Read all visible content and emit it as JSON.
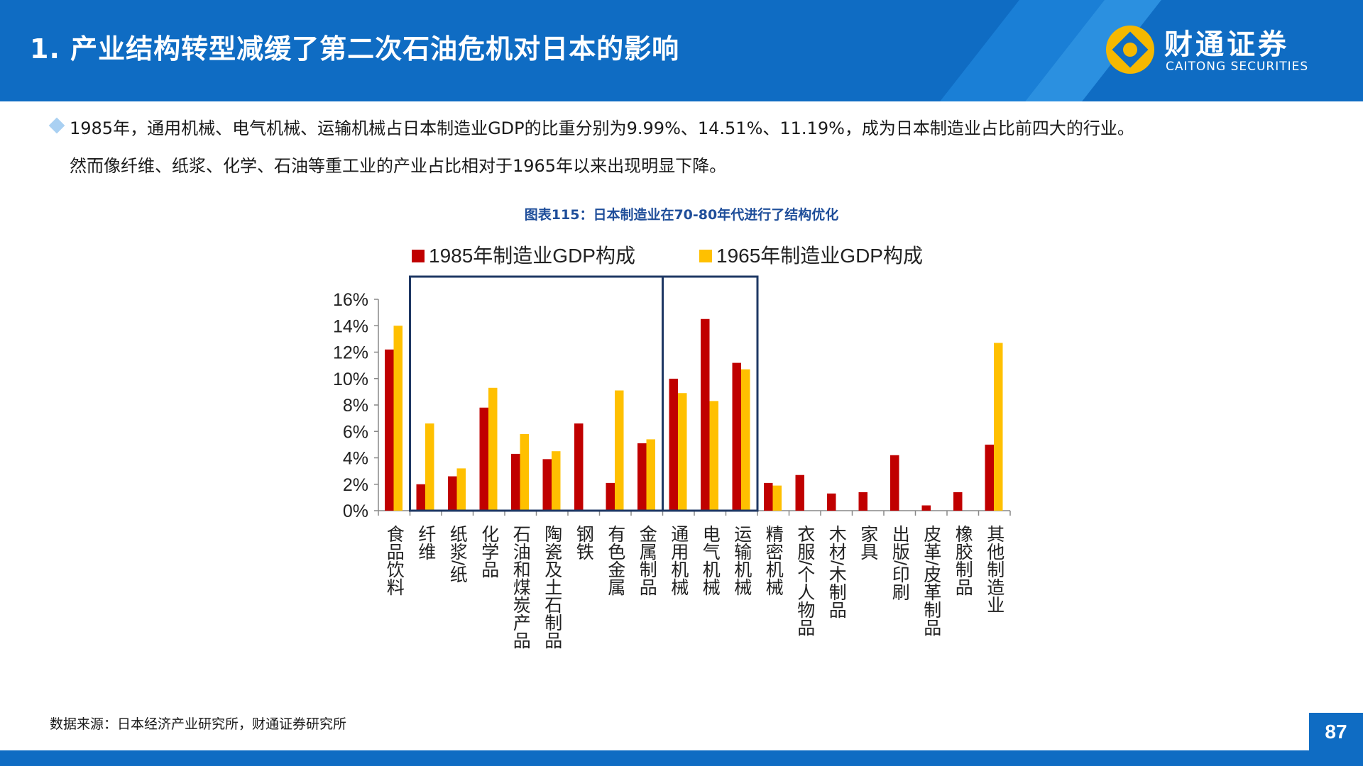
{
  "header": {
    "title": "1. 产业结构转型减缓了第二次石油危机对日本的影响",
    "logo_name": "财通证券",
    "logo_en": "CAITONG SECURITIES"
  },
  "body": {
    "line1": "1985年，通用机械、电气机械、运输机械占日本制造业GDP的比重分别为9.99%、14.51%、11.19%，成为日本制造业占比前四大的行业。",
    "line2": "然而像纤维、纸浆、化学、石油等重工业的产业占比相对于1965年以来出现明显下降。"
  },
  "chart_caption": "图表115：日本制造业在70-80年代进行了结构优化",
  "chart_data": {
    "type": "bar",
    "categories": [
      "食品饮料",
      "纤维",
      "纸浆/纸",
      "化学品",
      "石油和煤炭产品",
      "陶瓷及土石制品",
      "钢铁",
      "有色金属",
      "金属制品",
      "通用机械",
      "电气机械",
      "运输机械",
      "精密机械",
      "衣服/个人物品",
      "木材/木制品",
      "家具",
      "出版/印刷",
      "皮革/皮革制品",
      "橡胶制品",
      "其他制造业"
    ],
    "series": [
      {
        "name": "1985年制造业GDP构成",
        "color": "#c00000",
        "values": [
          12.2,
          2.0,
          2.6,
          7.8,
          4.3,
          3.9,
          6.6,
          2.1,
          5.1,
          9.99,
          14.51,
          11.19,
          2.1,
          2.7,
          1.3,
          1.4,
          4.2,
          0.4,
          1.4,
          5.0
        ]
      },
      {
        "name": "1965年制造业GDP构成",
        "color": "#ffc000",
        "values": [
          14.0,
          6.6,
          3.2,
          9.3,
          5.8,
          4.5,
          null,
          9.1,
          5.4,
          8.9,
          8.3,
          10.7,
          1.9,
          null,
          null,
          null,
          null,
          null,
          null,
          12.7
        ]
      }
    ],
    "y_ticks": [
      "0%",
      "2%",
      "4%",
      "6%",
      "8%",
      "10%",
      "12%",
      "14%",
      "16%"
    ],
    "ylim": [
      0,
      16
    ],
    "legend_position": "top",
    "box_color": "#1f3864"
  },
  "source": "数据来源：日本经济产业研究所，财通证券研究所",
  "page_number": "87"
}
